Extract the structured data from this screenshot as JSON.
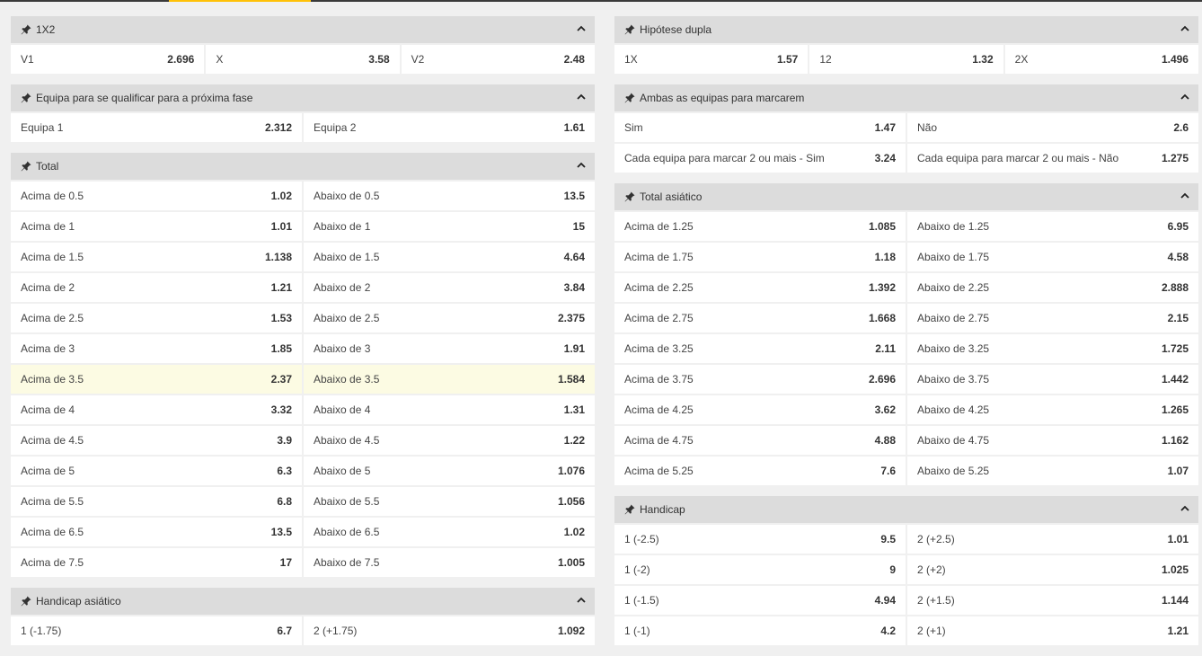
{
  "left_markets": [
    {
      "title": "1X2",
      "rows": [
        [
          {
            "label": "V1",
            "odd": "2.696"
          },
          {
            "label": "X",
            "odd": "3.58"
          },
          {
            "label": "V2",
            "odd": "2.48"
          }
        ]
      ]
    },
    {
      "title": "Equipa para se qualificar para a próxima fase",
      "rows": [
        [
          {
            "label": "Equipa 1",
            "odd": "2.312"
          },
          {
            "label": "Equipa 2",
            "odd": "1.61"
          }
        ]
      ]
    },
    {
      "title": "Total",
      "rows": [
        [
          {
            "label": "Acima de 0.5",
            "odd": "1.02"
          },
          {
            "label": "Abaixo de 0.5",
            "odd": "13.5"
          }
        ],
        [
          {
            "label": "Acima de 1",
            "odd": "1.01"
          },
          {
            "label": "Abaixo de 1",
            "odd": "15"
          }
        ],
        [
          {
            "label": "Acima de 1.5",
            "odd": "1.138"
          },
          {
            "label": "Abaixo de 1.5",
            "odd": "4.64"
          }
        ],
        [
          {
            "label": "Acima de 2",
            "odd": "1.21"
          },
          {
            "label": "Abaixo de 2",
            "odd": "3.84"
          }
        ],
        [
          {
            "label": "Acima de 2.5",
            "odd": "1.53"
          },
          {
            "label": "Abaixo de 2.5",
            "odd": "2.375"
          }
        ],
        [
          {
            "label": "Acima de 3",
            "odd": "1.85"
          },
          {
            "label": "Abaixo de 3",
            "odd": "1.91"
          }
        ],
        [
          {
            "label": "Acima de 3.5",
            "odd": "2.37",
            "highlight": true
          },
          {
            "label": "Abaixo de 3.5",
            "odd": "1.584",
            "highlight": true
          }
        ],
        [
          {
            "label": "Acima de 4",
            "odd": "3.32"
          },
          {
            "label": "Abaixo de 4",
            "odd": "1.31"
          }
        ],
        [
          {
            "label": "Acima de 4.5",
            "odd": "3.9"
          },
          {
            "label": "Abaixo de 4.5",
            "odd": "1.22"
          }
        ],
        [
          {
            "label": "Acima de 5",
            "odd": "6.3"
          },
          {
            "label": "Abaixo de 5",
            "odd": "1.076"
          }
        ],
        [
          {
            "label": "Acima de 5.5",
            "odd": "6.8"
          },
          {
            "label": "Abaixo de 5.5",
            "odd": "1.056"
          }
        ],
        [
          {
            "label": "Acima de 6.5",
            "odd": "13.5"
          },
          {
            "label": "Abaixo de 6.5",
            "odd": "1.02"
          }
        ],
        [
          {
            "label": "Acima de 7.5",
            "odd": "17"
          },
          {
            "label": "Abaixo de 7.5",
            "odd": "1.005"
          }
        ]
      ]
    },
    {
      "title": "Handicap asiático",
      "rows": [
        [
          {
            "label": "1 (-1.75)",
            "odd": "6.7"
          },
          {
            "label": "2 (+1.75)",
            "odd": "1.092"
          }
        ]
      ]
    }
  ],
  "right_markets": [
    {
      "title": "Hipótese dupla",
      "rows": [
        [
          {
            "label": "1X",
            "odd": "1.57"
          },
          {
            "label": "12",
            "odd": "1.32"
          },
          {
            "label": "2X",
            "odd": "1.496"
          }
        ]
      ]
    },
    {
      "title": "Ambas as equipas para marcarem",
      "rows": [
        [
          {
            "label": "Sim",
            "odd": "1.47"
          },
          {
            "label": "Não",
            "odd": "2.6"
          }
        ],
        [
          {
            "label": "Cada equipa para marcar 2 ou mais - Sim",
            "odd": "3.24"
          },
          {
            "label": "Cada equipa para marcar 2 ou mais - Não",
            "odd": "1.275"
          }
        ]
      ]
    },
    {
      "title": "Total asiático",
      "rows": [
        [
          {
            "label": "Acima de 1.25",
            "odd": "1.085"
          },
          {
            "label": "Abaixo de 1.25",
            "odd": "6.95"
          }
        ],
        [
          {
            "label": "Acima de 1.75",
            "odd": "1.18"
          },
          {
            "label": "Abaixo de 1.75",
            "odd": "4.58"
          }
        ],
        [
          {
            "label": "Acima de 2.25",
            "odd": "1.392"
          },
          {
            "label": "Abaixo de 2.25",
            "odd": "2.888"
          }
        ],
        [
          {
            "label": "Acima de 2.75",
            "odd": "1.668"
          },
          {
            "label": "Abaixo de 2.75",
            "odd": "2.15"
          }
        ],
        [
          {
            "label": "Acima de 3.25",
            "odd": "2.11"
          },
          {
            "label": "Abaixo de 3.25",
            "odd": "1.725"
          }
        ],
        [
          {
            "label": "Acima de 3.75",
            "odd": "2.696"
          },
          {
            "label": "Abaixo de 3.75",
            "odd": "1.442"
          }
        ],
        [
          {
            "label": "Acima de 4.25",
            "odd": "3.62"
          },
          {
            "label": "Abaixo de 4.25",
            "odd": "1.265"
          }
        ],
        [
          {
            "label": "Acima de 4.75",
            "odd": "4.88"
          },
          {
            "label": "Abaixo de 4.75",
            "odd": "1.162"
          }
        ],
        [
          {
            "label": "Acima de 5.25",
            "odd": "7.6"
          },
          {
            "label": "Abaixo de 5.25",
            "odd": "1.07"
          }
        ]
      ]
    },
    {
      "title": "Handicap",
      "rows": [
        [
          {
            "label": "1 (-2.5)",
            "odd": "9.5"
          },
          {
            "label": "2 (+2.5)",
            "odd": "1.01"
          }
        ],
        [
          {
            "label": "1 (-2)",
            "odd": "9"
          },
          {
            "label": "2 (+2)",
            "odd": "1.025"
          }
        ],
        [
          {
            "label": "1 (-1.5)",
            "odd": "4.94"
          },
          {
            "label": "2 (+1.5)",
            "odd": "1.144"
          }
        ],
        [
          {
            "label": "1 (-1)",
            "odd": "4.2"
          },
          {
            "label": "2 (+1)",
            "odd": "1.21"
          }
        ]
      ]
    }
  ],
  "icons": {
    "pin": "pin-icon",
    "collapse": "chevron-up-icon"
  },
  "colors": {
    "accent": "#ffc107",
    "header_bg": "#dcdcdc",
    "highlight_bg": "#fcfbe3",
    "page_bg": "#f0f0f0"
  }
}
